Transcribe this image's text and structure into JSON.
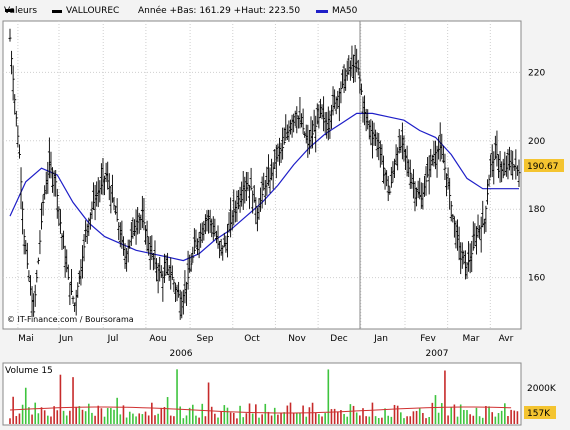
{
  "colors": {
    "price": "#000000",
    "ma": "#1f1fc8",
    "vol_up": "#3ec43e",
    "vol_down": "#c62a2a",
    "vol_ma": "#d03030",
    "grid": "#cfcfcf",
    "last_badge": "#f4c430",
    "vol_badge": "#f4c430"
  },
  "header": {
    "valeurs_label": "Valeurs",
    "ticker": "VALLOUREC",
    "stats": "Année +Bas: 161.29 +Haut: 223.50",
    "ma_label": "MA50"
  },
  "source": "© IT-Finance.com / Boursorama",
  "last_price": "190.67",
  "volume": {
    "label": "Volume 15",
    "tick_label": "2000K",
    "last": "157K"
  },
  "chart_data": {
    "type": "ohlc",
    "ylim": [
      145,
      235
    ],
    "y_ticks": [
      160,
      180,
      200,
      220
    ],
    "months": [
      "Mai",
      "Jun",
      "Jul",
      "Aou",
      "Sep",
      "Oct",
      "Nov",
      "Dec",
      "Jan",
      "Fev",
      "Mar",
      "Avr"
    ],
    "years": [
      "2006",
      "2007"
    ],
    "close_path": [
      [
        0,
        230
      ],
      [
        3,
        212
      ],
      [
        6,
        196
      ],
      [
        9,
        172
      ],
      [
        12,
        160
      ],
      [
        15,
        150
      ],
      [
        18,
        165
      ],
      [
        21,
        182
      ],
      [
        25,
        193
      ],
      [
        29,
        188
      ],
      [
        33,
        172
      ],
      [
        37,
        160
      ],
      [
        41,
        152
      ],
      [
        45,
        163
      ],
      [
        49,
        175
      ],
      [
        53,
        182
      ],
      [
        57,
        186
      ],
      [
        61,
        190
      ],
      [
        65,
        183
      ],
      [
        69,
        175
      ],
      [
        73,
        166
      ],
      [
        77,
        172
      ],
      [
        81,
        178
      ],
      [
        85,
        176
      ],
      [
        89,
        168
      ],
      [
        93,
        163
      ],
      [
        97,
        160
      ],
      [
        101,
        163
      ],
      [
        105,
        157
      ],
      [
        109,
        153
      ],
      [
        113,
        160
      ],
      [
        117,
        168
      ],
      [
        121,
        173
      ],
      [
        125,
        178
      ],
      [
        129,
        175
      ],
      [
        133,
        168
      ],
      [
        137,
        170
      ],
      [
        141,
        178
      ],
      [
        145,
        183
      ],
      [
        149,
        188
      ],
      [
        153,
        186
      ],
      [
        157,
        179
      ],
      [
        161,
        186
      ],
      [
        165,
        189
      ],
      [
        169,
        195
      ],
      [
        173,
        198
      ],
      [
        177,
        204
      ],
      [
        181,
        208
      ],
      [
        185,
        205
      ],
      [
        189,
        199
      ],
      [
        193,
        203
      ],
      [
        197,
        208
      ],
      [
        201,
        205
      ],
      [
        205,
        210
      ],
      [
        209,
        214
      ],
      [
        213,
        219
      ],
      [
        217,
        222
      ],
      [
        221,
        221
      ],
      [
        225,
        208
      ],
      [
        229,
        203
      ],
      [
        233,
        200
      ],
      [
        237,
        192
      ],
      [
        241,
        185
      ],
      [
        245,
        196
      ],
      [
        249,
        199
      ],
      [
        253,
        192
      ],
      [
        257,
        186
      ],
      [
        261,
        183
      ],
      [
        265,
        190
      ],
      [
        269,
        196
      ],
      [
        273,
        198
      ],
      [
        277,
        190
      ],
      [
        281,
        178
      ],
      [
        285,
        169
      ],
      [
        289,
        163
      ],
      [
        293,
        167
      ],
      [
        297,
        174
      ],
      [
        301,
        176
      ],
      [
        305,
        193
      ],
      [
        309,
        196
      ],
      [
        313,
        190
      ],
      [
        317,
        194
      ],
      [
        321,
        192
      ],
      [
        323,
        190.67
      ]
    ],
    "ma50_path": [
      [
        0,
        178
      ],
      [
        10,
        188
      ],
      [
        20,
        192
      ],
      [
        30,
        190
      ],
      [
        40,
        182
      ],
      [
        50,
        176
      ],
      [
        60,
        172
      ],
      [
        70,
        170
      ],
      [
        80,
        168
      ],
      [
        90,
        167
      ],
      [
        100,
        166
      ],
      [
        110,
        165
      ],
      [
        120,
        167
      ],
      [
        130,
        171
      ],
      [
        140,
        174
      ],
      [
        150,
        178
      ],
      [
        160,
        182
      ],
      [
        170,
        187
      ],
      [
        180,
        193
      ],
      [
        190,
        198
      ],
      [
        200,
        202
      ],
      [
        210,
        205
      ],
      [
        220,
        208
      ],
      [
        230,
        208
      ],
      [
        240,
        207
      ],
      [
        250,
        206
      ],
      [
        260,
        203
      ],
      [
        270,
        201
      ],
      [
        280,
        196
      ],
      [
        290,
        189
      ],
      [
        300,
        186
      ],
      [
        310,
        186
      ],
      [
        323,
        186
      ]
    ]
  }
}
